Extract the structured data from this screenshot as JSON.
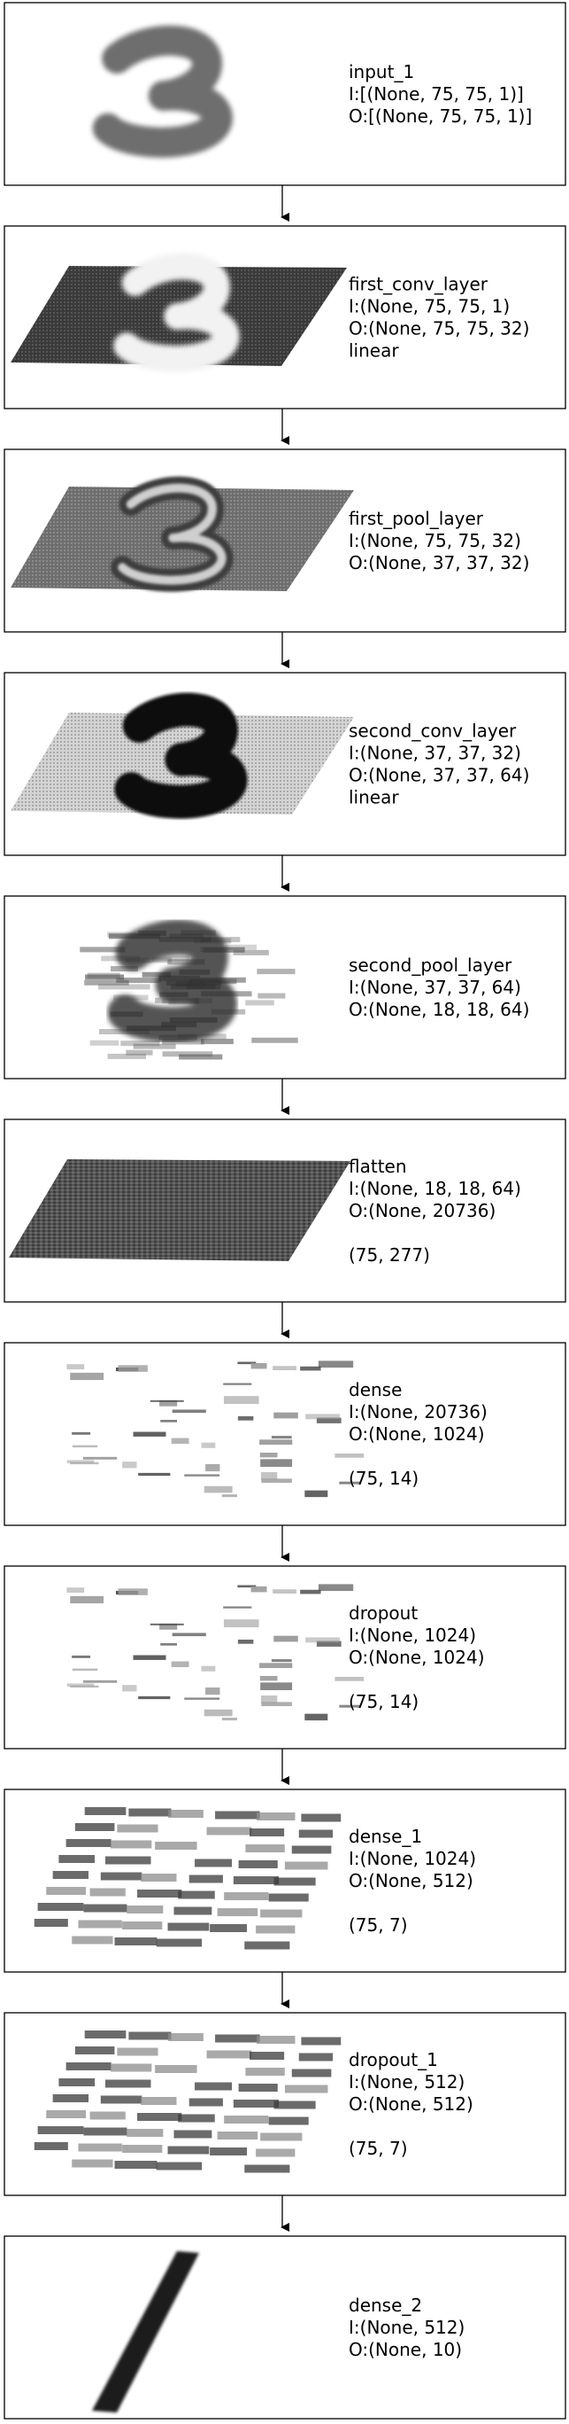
{
  "layers": [
    {
      "name": "input_1",
      "input": "I:[(None, 75, 75, 1)]",
      "output": "O:[(None, 75, 75, 1)]",
      "activation": "",
      "shape": "",
      "viz": "digit"
    },
    {
      "name": "first_conv_layer",
      "input": "I:(None, 75, 75, 1)",
      "output": "O:(None, 75, 75, 32)",
      "activation": "linear",
      "shape": "",
      "viz": "conv"
    },
    {
      "name": "first_pool_layer",
      "input": "I:(None, 75, 75, 32)",
      "output": "O:(None, 37, 37, 32)",
      "activation": "",
      "shape": "",
      "viz": "pool"
    },
    {
      "name": "second_conv_layer",
      "input": "I:(None, 37, 37, 32)",
      "output": "O:(None, 37, 37, 64)",
      "activation": "linear",
      "shape": "",
      "viz": "conv2"
    },
    {
      "name": "second_pool_layer",
      "input": "I:(None, 37, 37, 64)",
      "output": "O:(None, 18, 18, 64)",
      "activation": "",
      "shape": "",
      "viz": "pool2"
    },
    {
      "name": "flatten",
      "input": "I:(None, 18, 18, 64)",
      "output": "O:(None, 20736)",
      "activation": "",
      "shape": "(75, 277)",
      "viz": "flatten"
    },
    {
      "name": "dense",
      "input": "I:(None, 20736)",
      "output": "O:(None, 1024)",
      "activation": "",
      "shape": "(75, 14)",
      "viz": "sparse"
    },
    {
      "name": "dropout",
      "input": "I:(None, 1024)",
      "output": "O:(None, 1024)",
      "activation": "",
      "shape": "(75, 14)",
      "viz": "sparse"
    },
    {
      "name": "dense_1",
      "input": "I:(None, 1024)",
      "output": "O:(None, 512)",
      "activation": "",
      "shape": "(75, 7)",
      "viz": "dense"
    },
    {
      "name": "dropout_1",
      "input": "I:(None, 512)",
      "output": "O:(None, 512)",
      "activation": "",
      "shape": "(75, 7)",
      "viz": "dense"
    },
    {
      "name": "dense_2",
      "input": "I:(None, 512)",
      "output": "O:(None, 10)",
      "activation": "",
      "shape": "",
      "viz": "bar"
    }
  ]
}
